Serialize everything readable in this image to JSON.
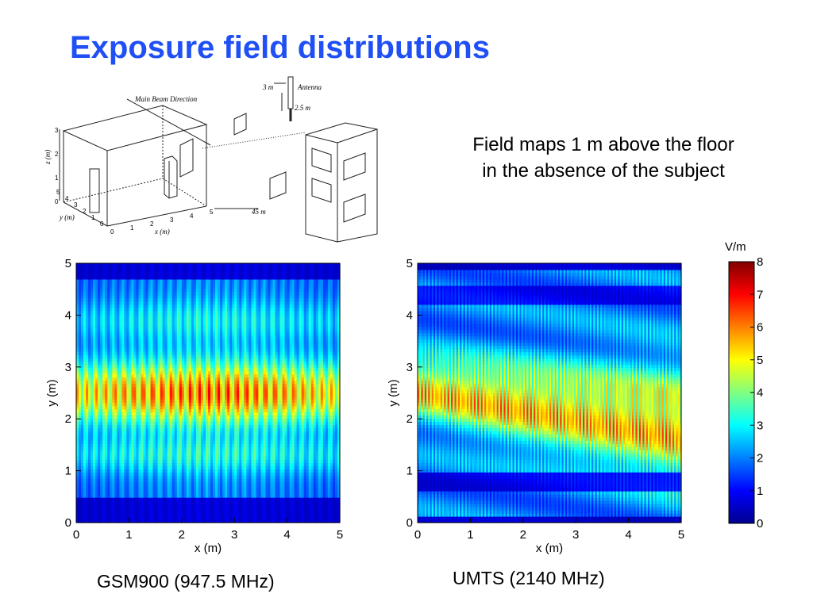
{
  "title": "Exposure field distributions",
  "subtitle": {
    "line1": "Field maps 1 m above the floor",
    "line2": "in the absence of the subject"
  },
  "diagram": {
    "main_beam_label": "Main Beam Direction",
    "antenna_label": "Antenna",
    "height_label": "3 m",
    "antenna_length_label": "2.5 m",
    "distance_label": "45 m",
    "z_axis_label": "z (m)",
    "y_axis_label": "y (m)",
    "x_axis_label": "x (m)",
    "z_ticks": [
      "3",
      "2",
      "1",
      "0"
    ],
    "y_ticks": [
      "5",
      "4",
      "3",
      "2",
      "1",
      "0"
    ],
    "x_ticks": [
      "0",
      "1",
      "2",
      "3",
      "4",
      "5"
    ]
  },
  "colormap": {
    "unit": "V/m",
    "ticks": [
      "8",
      "7",
      "6",
      "5",
      "4",
      "3",
      "2",
      "1",
      "0"
    ],
    "range": [
      0,
      8
    ],
    "colors": [
      "#00008f",
      "#0000ff",
      "#0080ff",
      "#00ffff",
      "#80ff80",
      "#ffff00",
      "#ff8000",
      "#ff0000",
      "#800000"
    ]
  },
  "chart_data": [
    {
      "type": "heatmap",
      "caption": "GSM900 (947.5 MHz)",
      "xlabel": "x (m)",
      "ylabel": "y (m)",
      "xlim": [
        0,
        5
      ],
      "ylim": [
        0,
        5
      ],
      "x_ticks": [
        "0",
        "1",
        "2",
        "3",
        "4",
        "5"
      ],
      "y_ticks": [
        "0",
        "1",
        "2",
        "3",
        "4",
        "5"
      ],
      "value_unit": "V/m",
      "value_range": [
        0,
        8
      ],
      "fringe_count": 28,
      "high_field_band_y": [
        2.0,
        3.0
      ],
      "peak_y": 2.5
    },
    {
      "type": "heatmap",
      "caption": "UMTS (2140 MHz)",
      "xlabel": "x (m)",
      "ylabel": "y (m)",
      "xlim": [
        0,
        5
      ],
      "ylim": [
        0,
        5
      ],
      "x_ticks": [
        "0",
        "1",
        "2",
        "3",
        "4",
        "5"
      ],
      "y_ticks": [
        "0",
        "1",
        "2",
        "3",
        "4",
        "5"
      ],
      "value_unit": "V/m",
      "value_range": [
        0,
        8
      ],
      "fringe_count": 70,
      "high_field_band_y": [
        1.6,
        3.5
      ],
      "peak_y": 2.6
    }
  ]
}
